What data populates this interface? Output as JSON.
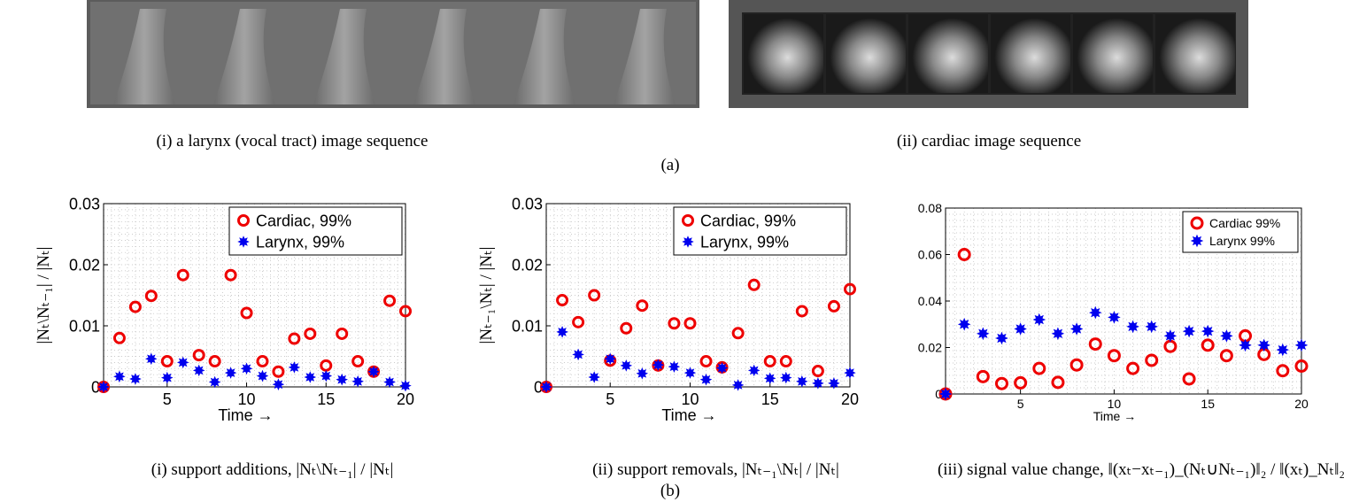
{
  "panel_a": {
    "label": "(a)",
    "captions": [
      "(i) a larynx (vocal tract) image sequence",
      "(ii) cardiac image sequence"
    ]
  },
  "panel_b": {
    "label": "(b)"
  },
  "chart_data": [
    {
      "type": "scatter",
      "caption": "(i) support additions, |Nₜ\\Nₜ₋₁| / |Nₜ|",
      "ylabel": "|Nₜ\\Nₜ₋₁| / |Nₜ|",
      "xlabel": "Time →",
      "x": [
        1,
        2,
        3,
        4,
        5,
        6,
        7,
        8,
        9,
        10,
        11,
        12,
        13,
        14,
        15,
        16,
        17,
        18,
        19,
        20
      ],
      "xlim": [
        1,
        20
      ],
      "xticks": [
        5,
        10,
        15,
        20
      ],
      "ylim": [
        0,
        0.03
      ],
      "yticks": [
        0,
        0.01,
        0.02,
        0.03
      ],
      "grid": true,
      "legend": "upper right",
      "series": [
        {
          "name": "Cardiac, 99%",
          "color": "#ee0000",
          "marker": "o",
          "values": [
            0,
            0.008,
            0.0131,
            0.0149,
            0.0042,
            0.0183,
            0.0052,
            0.0042,
            0.0183,
            0.0121,
            0.0042,
            0.0025,
            0.0079,
            0.0087,
            0.0035,
            0.0087,
            0.0042,
            0.0025,
            0.0141,
            0.0124
          ]
        },
        {
          "name": "Larynx, 99%",
          "color": "#0000ee",
          "marker": "*",
          "values": [
            0,
            0.0017,
            0.0013,
            0.0046,
            0.0015,
            0.004,
            0.0027,
            0.0008,
            0.0023,
            0.003,
            0.0018,
            0.0004,
            0.0032,
            0.0016,
            0.0018,
            0.0012,
            0.0009,
            0.0025,
            0.0008,
            0.0002
          ]
        }
      ]
    },
    {
      "type": "scatter",
      "caption": "(ii) support removals, |Nₜ₋₁\\Nₜ| / |Nₜ|",
      "ylabel": "|Nₜ₋₁\\Nₜ| / |Nₜ|",
      "xlabel": "Time →",
      "x": [
        1,
        2,
        3,
        4,
        5,
        6,
        7,
        8,
        9,
        10,
        11,
        12,
        13,
        14,
        15,
        16,
        17,
        18,
        19,
        20
      ],
      "xlim": [
        1,
        20
      ],
      "xticks": [
        5,
        10,
        15,
        20
      ],
      "ylim": [
        0,
        0.03
      ],
      "yticks": [
        0,
        0.01,
        0.02,
        0.03
      ],
      "grid": true,
      "legend": "upper right",
      "series": [
        {
          "name": "Cardiac, 99%",
          "color": "#ee0000",
          "marker": "o",
          "values": [
            0,
            0.0142,
            0.0106,
            0.015,
            0.0043,
            0.0096,
            0.0133,
            0.0035,
            0.0104,
            0.0104,
            0.0042,
            0.0032,
            0.0088,
            0.0167,
            0.0042,
            0.0042,
            0.0124,
            0.0026,
            0.0132,
            0.016
          ]
        },
        {
          "name": "Larynx, 99%",
          "color": "#0000ee",
          "marker": "*",
          "values": [
            0,
            0.009,
            0.0053,
            0.0016,
            0.0046,
            0.0035,
            0.0022,
            0.0036,
            0.0033,
            0.0023,
            0.0012,
            0.0031,
            0.0003,
            0.0027,
            0.0014,
            0.0015,
            0.0009,
            0.0006,
            0.0006,
            0.0023
          ]
        }
      ]
    },
    {
      "type": "scatter",
      "caption": "(iii) signal value change, ‖(xₜ−xₜ₋₁)_(Nₜ∪Nₜ₋₁)‖₂ / ‖(xₜ)_Nₜ‖₂",
      "xlabel": "Time →",
      "x": [
        1,
        2,
        3,
        4,
        5,
        6,
        7,
        8,
        9,
        10,
        11,
        12,
        13,
        14,
        15,
        16,
        17,
        18,
        19,
        20
      ],
      "xlim": [
        1,
        20
      ],
      "xticks": [
        5,
        10,
        15,
        20
      ],
      "ylim": [
        0,
        0.08
      ],
      "yticks": [
        0,
        0.02,
        0.04,
        0.06,
        0.08
      ],
      "grid": true,
      "legend": "upper right",
      "series": [
        {
          "name": "Cardiac 99%",
          "color": "#ee0000",
          "marker": "o",
          "values": [
            0,
            0.06,
            0.0075,
            0.0045,
            0.0048,
            0.011,
            0.005,
            0.0125,
            0.0215,
            0.0165,
            0.011,
            0.0145,
            0.0205,
            0.0065,
            0.021,
            0.0165,
            0.025,
            0.017,
            0.01,
            0.012
          ]
        },
        {
          "name": "Larynx 99%",
          "color": "#0000ee",
          "marker": "*",
          "values": [
            0,
            0.03,
            0.026,
            0.024,
            0.028,
            0.032,
            0.026,
            0.028,
            0.035,
            0.033,
            0.029,
            0.029,
            0.025,
            0.027,
            0.027,
            0.025,
            0.021,
            0.021,
            0.019,
            0.021
          ]
        }
      ]
    }
  ]
}
